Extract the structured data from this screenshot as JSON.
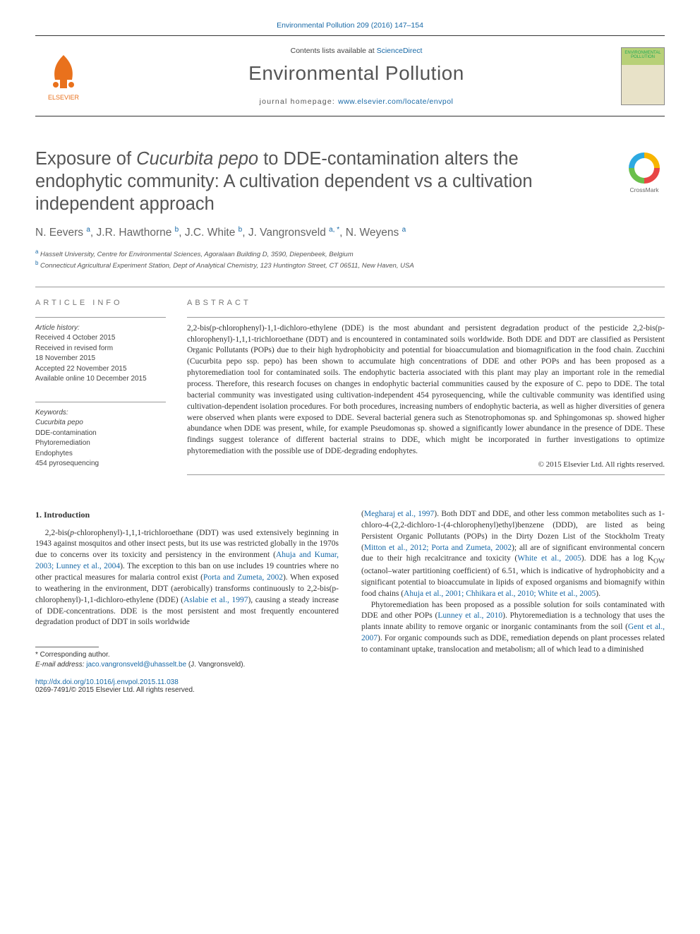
{
  "header": {
    "citation": "Environmental Pollution 209 (2016) 147–154",
    "contents_prefix": "Contents lists available at ",
    "contents_link": "ScienceDirect",
    "journal_name": "Environmental Pollution",
    "homepage_prefix": "journal homepage: ",
    "homepage_link": "www.elsevier.com/locate/envpol",
    "publisher_label": "ELSEVIER",
    "cover_label": "ENVIRONMENTAL POLLUTION"
  },
  "crossmark_label": "CrossMark",
  "title_parts": {
    "p1": "Exposure of ",
    "em1": "Cucurbita pepo",
    "p2": " to DDE-contamination alters the endophytic community: A cultivation dependent vs a cultivation independent approach"
  },
  "authors_html": "N. Eevers <sup>a</sup>, J.R. Hawthorne <sup>b</sup>, J.C. White <sup>b</sup>, J. Vangronsveld <sup>a, *</sup>, N. Weyens <sup>a</sup>",
  "affiliations": [
    {
      "sup": "a",
      "text": "Hasselt University, Centre for Environmental Sciences, Agoralaan Building D, 3590, Diepenbeek, Belgium"
    },
    {
      "sup": "b",
      "text": "Connecticut Agricultural Experiment Station, Dept of Analytical Chemistry, 123 Huntington Street, CT 06511, New Haven, USA"
    }
  ],
  "info": {
    "heading": "ARTICLE INFO",
    "history_label": "Article history:",
    "history": [
      "Received 4 October 2015",
      "Received in revised form",
      "18 November 2015",
      "Accepted 22 November 2015",
      "Available online 10 December 2015"
    ],
    "keywords_label": "Keywords:",
    "keywords": [
      "Cucurbita pepo",
      "DDE-contamination",
      "Phytoremediation",
      "Endophytes",
      "454 pyrosequencing"
    ]
  },
  "abstract": {
    "heading": "ABSTRACT",
    "text": "2,2-bis(p-chlorophenyl)-1,1-dichloro-ethylene (DDE) is the most abundant and persistent degradation product of the pesticide 2,2-bis(p-chlorophenyl)-1,1,1-trichloroethane (DDT) and is encountered in contaminated soils worldwide. Both DDE and DDT are classified as Persistent Organic Pollutants (POPs) due to their high hydrophobicity and potential for bioaccumulation and biomagnification in the food chain. Zucchini (Cucurbita pepo ssp. pepo) has been shown to accumulate high concentrations of DDE and other POPs and has been proposed as a phytoremediation tool for contaminated soils. The endophytic bacteria associated with this plant may play an important role in the remedial process. Therefore, this research focuses on changes in endophytic bacterial communities caused by the exposure of C. pepo to DDE. The total bacterial community was investigated using cultivation-independent 454 pyrosequencing, while the cultivable community was identified using cultivation-dependent isolation procedures. For both procedures, increasing numbers of endophytic bacteria, as well as higher diversities of genera were observed when plants were exposed to DDE. Several bacterial genera such as Stenotrophomonas sp. and Sphingomonas sp. showed higher abundance when DDE was present, while, for example Pseudomonas sp. showed a significantly lower abundance in the presence of DDE. These findings suggest tolerance of different bacterial strains to DDE, which might be incorporated in further investigations to optimize phytoremediation with the possible use of DDE-degrading endophytes.",
    "copyright": "© 2015 Elsevier Ltd. All rights reserved."
  },
  "intro": {
    "heading": "1. Introduction",
    "col1_html": "2,2-bis(<em>p</em>-chlorophenyl)-1,1,1-trichloroethane (DDT) was used extensively beginning in 1943 against mosquitos and other insect pests, but its use was restricted globally in the 1970s due to concerns over its toxicity and persistency in the environment (<a href='#'>Ahuja and Kumar, 2003; Lunney et al., 2004</a>). The exception to this ban on use includes 19 countries where no other practical measures for malaria control exist (<a href='#'>Porta and Zumeta, 2002</a>). When exposed to weathering in the environment, DDT (aerobically) transforms continuously to 2,2-bis(p-chlorophenyl)-1,1-dichloro-ethylene (DDE) (<a href='#'>Aslabie et al., 1997</a>), causing a steady increase of DDE-concentrations. DDE is the most persistent and most frequently encountered degradation product of DDT in soils worldwide",
    "col2_html": "(<a href='#'>Megharaj et al., 1997</a>). Both DDT and DDE, and other less common metabolites such as 1-chloro-4-(2,2-dichloro-1-(4-chlorophenyl)ethyl)benzene (DDD), are listed as being Persistent Organic Pollutants (POPs) in the Dirty Dozen List of the Stockholm Treaty (<a href='#'>Mitton et al., 2012; Porta and Zumeta, 2002</a>); all are of significant environmental concern due to their high recalcitrance and toxicity (<a href='#'>White et al., 2005</a>). DDE has a log K<sub>OW</sub> (octanol–water partitioning coefficient) of 6.51, which is indicative of hydrophobicity and a significant potential to bioaccumulate in lipids of exposed organisms and biomagnify within food chains (<a href='#'>Ahuja et al., 2001; Chhikara et al., 2010; White et al., 2005</a>).",
    "col2_p2_html": "Phytoremediation has been proposed as a possible solution for soils contaminated with DDE and other POPs (<a href='#'>Lunney et al., 2010</a>). Phytoremediation is a technology that uses the plants innate ability to remove organic or inorganic contaminants from the soil (<a href='#'>Gent et al., 2007</a>). For organic compounds such as DDE, remediation depends on plant processes related to contaminant uptake, translocation and metabolism; all of which lead to a diminished"
  },
  "footer": {
    "corr_label": "* Corresponding author.",
    "email_label": "E-mail address: ",
    "email": "jaco.vangronsveld@uhasselt.be",
    "email_suffix": " (J. Vangronsveld).",
    "doi": "http://dx.doi.org/10.1016/j.envpol.2015.11.038",
    "issn_line": "0269-7491/© 2015 Elsevier Ltd. All rights reserved."
  },
  "colors": {
    "link": "#1768a6",
    "text": "#333333",
    "heading_gray": "#555555",
    "elsevier_orange": "#e9711c"
  }
}
